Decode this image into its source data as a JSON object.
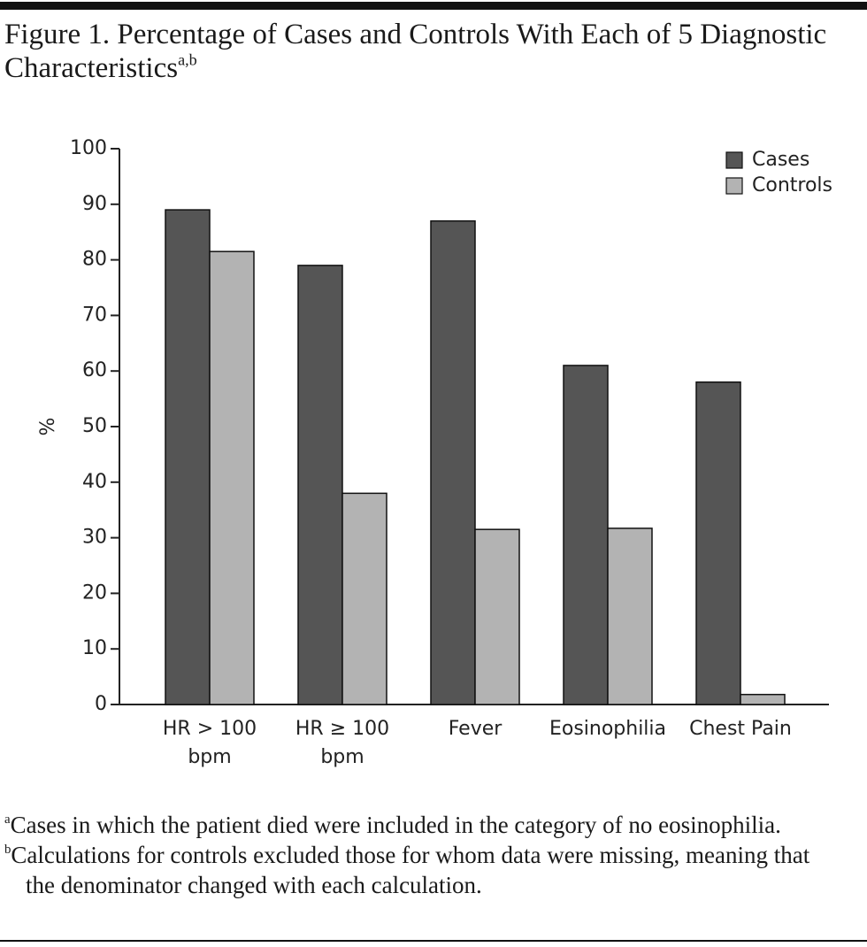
{
  "figure": {
    "title": "Figure 1. Percentage of Cases and Controls With Each of 5 Diagnostic Characteristics",
    "title_superscript": "a,b"
  },
  "chart_data": {
    "type": "bar",
    "y_label": "%",
    "categories": [
      "HR > 100\nbpm",
      "HR ≥ 100\nbpm",
      "Fever",
      "Eosinophilia",
      "Chest Pain"
    ],
    "series": [
      {
        "name": "Cases",
        "color": "#555555",
        "values": [
          89,
          79,
          87,
          61,
          58
        ]
      },
      {
        "name": "Controls",
        "color": "#b3b3b3",
        "values": [
          81.5,
          38,
          31.5,
          31.7,
          1.8
        ]
      }
    ],
    "ylim": [
      0,
      100
    ],
    "yticks": [
      0,
      10,
      20,
      30,
      40,
      50,
      60,
      70,
      80,
      90,
      100
    ],
    "grid": false,
    "legend": "top-right"
  },
  "footnotes": [
    {
      "marker": "a",
      "text": "Cases in which the patient died were included in the category of no eosinophilia."
    },
    {
      "marker": "b",
      "text": "Calculations for controls excluded those for whom data were missing, meaning that the denominator changed with each calculation."
    }
  ]
}
